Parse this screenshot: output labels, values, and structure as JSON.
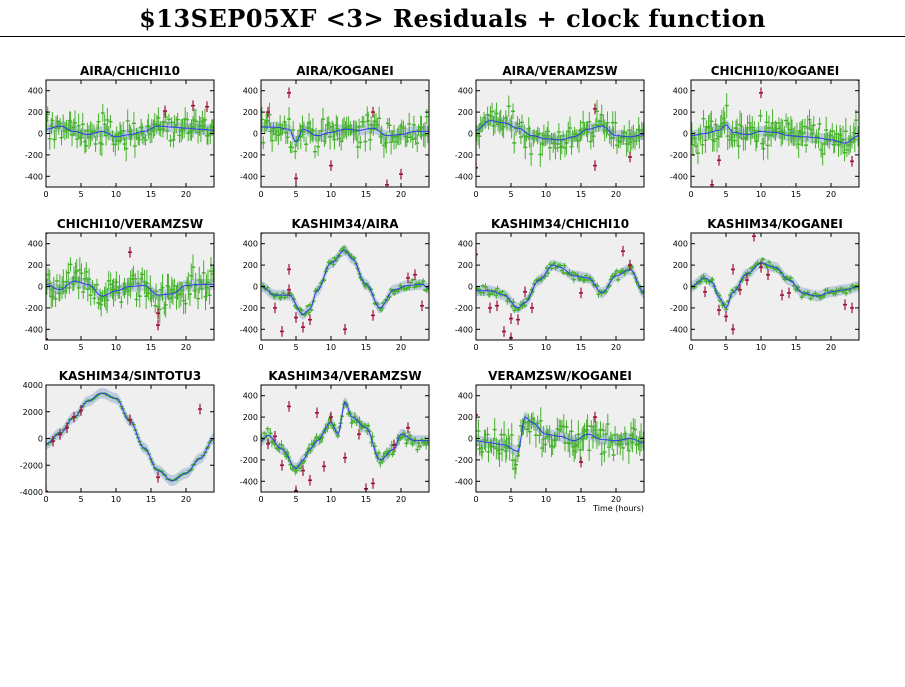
{
  "title": "$13SEP05XF <3> Residuals + clock function",
  "colors": {
    "residual": "#44b12a",
    "outlier": "#a0123a",
    "clock": "#2f3de8",
    "band": "#b9c7dd",
    "panel_bg": "#efefef"
  },
  "chart_data": [
    {
      "type": "scatter",
      "title": "AIRA/CHICHI10",
      "xlim": [
        0,
        24
      ],
      "ylim": [
        -500,
        500
      ],
      "xticks": [
        0,
        5,
        10,
        15,
        20
      ],
      "yticks": [
        -400,
        -200,
        0,
        200,
        400
      ],
      "xlabel": "",
      "clock": [
        [
          0,
          40
        ],
        [
          2,
          70
        ],
        [
          4,
          20
        ],
        [
          6,
          -10
        ],
        [
          8,
          20
        ],
        [
          10,
          -30
        ],
        [
          12,
          -10
        ],
        [
          14,
          20
        ],
        [
          16,
          70
        ],
        [
          18,
          60
        ],
        [
          20,
          50
        ],
        [
          22,
          40
        ],
        [
          24,
          30
        ]
      ],
      "noise": 100,
      "outliers": [
        [
          17,
          210
        ],
        [
          21,
          260
        ],
        [
          23,
          250
        ]
      ]
    },
    {
      "type": "scatter",
      "title": "AIRA/KOGANEI",
      "xlim": [
        0,
        24
      ],
      "ylim": [
        -500,
        500
      ],
      "xticks": [
        0,
        5,
        10,
        15,
        20
      ],
      "yticks": [
        -400,
        -200,
        0,
        200,
        400
      ],
      "xlabel": "",
      "clock": [
        [
          0,
          60
        ],
        [
          2,
          60
        ],
        [
          4,
          40
        ],
        [
          5,
          -80
        ],
        [
          6,
          40
        ],
        [
          8,
          -20
        ],
        [
          10,
          10
        ],
        [
          12,
          40
        ],
        [
          14,
          30
        ],
        [
          16,
          50
        ],
        [
          18,
          -20
        ],
        [
          20,
          -10
        ],
        [
          22,
          20
        ],
        [
          24,
          20
        ]
      ],
      "noise": 100,
      "outliers": [
        [
          1,
          200
        ],
        [
          4,
          380
        ],
        [
          5,
          -420
        ],
        [
          10,
          -300
        ],
        [
          16,
          200
        ],
        [
          18,
          -480
        ],
        [
          20,
          -380
        ]
      ]
    },
    {
      "type": "scatter",
      "title": "AIRA/VERAMZSW",
      "xlim": [
        0,
        24
      ],
      "ylim": [
        -500,
        500
      ],
      "xticks": [
        0,
        5,
        10,
        15,
        20
      ],
      "yticks": [
        -400,
        -200,
        0,
        200,
        400
      ],
      "xlabel": "",
      "clock": [
        [
          0,
          30
        ],
        [
          2,
          120
        ],
        [
          4,
          100
        ],
        [
          6,
          50
        ],
        [
          8,
          -20
        ],
        [
          10,
          -50
        ],
        [
          12,
          -60
        ],
        [
          14,
          -30
        ],
        [
          16,
          40
        ],
        [
          18,
          70
        ],
        [
          20,
          -20
        ],
        [
          22,
          -30
        ],
        [
          24,
          -10
        ]
      ],
      "noise": 100,
      "outliers": [
        [
          0,
          -320
        ],
        [
          17,
          -300
        ],
        [
          22,
          -220
        ],
        [
          17,
          230
        ]
      ]
    },
    {
      "type": "scatter",
      "title": "CHICHI10/KOGANEI",
      "xlim": [
        0,
        24
      ],
      "ylim": [
        -500,
        500
      ],
      "xticks": [
        0,
        5,
        10,
        15,
        20
      ],
      "yticks": [
        -400,
        -200,
        0,
        200,
        400
      ],
      "xlabel": "",
      "clock": [
        [
          0,
          -20
        ],
        [
          2,
          0
        ],
        [
          4,
          30
        ],
        [
          5,
          80
        ],
        [
          6,
          10
        ],
        [
          8,
          -10
        ],
        [
          10,
          20
        ],
        [
          12,
          10
        ],
        [
          14,
          -20
        ],
        [
          16,
          -30
        ],
        [
          18,
          -40
        ],
        [
          20,
          -60
        ],
        [
          22,
          -90
        ],
        [
          24,
          -20
        ]
      ],
      "noise": 110,
      "outliers": [
        [
          3,
          -480
        ],
        [
          4,
          -250
        ],
        [
          10,
          380
        ],
        [
          23,
          -260
        ],
        [
          24,
          500
        ]
      ]
    },
    {
      "type": "scatter",
      "title": "CHICHI10/VERAMZSW",
      "xlim": [
        0,
        24
      ],
      "ylim": [
        -500,
        500
      ],
      "xticks": [
        0,
        5,
        10,
        15,
        20
      ],
      "yticks": [
        -400,
        -200,
        0,
        200,
        400
      ],
      "xlabel": "",
      "clock": [
        [
          0,
          20
        ],
        [
          2,
          -30
        ],
        [
          4,
          50
        ],
        [
          6,
          20
        ],
        [
          8,
          -90
        ],
        [
          10,
          -40
        ],
        [
          12,
          0
        ],
        [
          14,
          10
        ],
        [
          16,
          -80
        ],
        [
          18,
          -70
        ],
        [
          20,
          10
        ],
        [
          22,
          20
        ],
        [
          24,
          20
        ]
      ],
      "noise": 110,
      "outliers": [
        [
          0,
          500
        ],
        [
          0,
          -490
        ],
        [
          12,
          320
        ],
        [
          16,
          -360
        ],
        [
          16,
          -250
        ]
      ]
    },
    {
      "type": "scatter",
      "title": "KASHIM34/AIRA",
      "xlim": [
        0,
        24
      ],
      "ylim": [
        -500,
        500
      ],
      "xticks": [
        0,
        5,
        10,
        15,
        20
      ],
      "yticks": [
        -400,
        -200,
        0,
        200,
        400
      ],
      "xlabel": "",
      "clock": [
        [
          0,
          0
        ],
        [
          2,
          -80
        ],
        [
          4,
          -80
        ],
        [
          6,
          -260
        ],
        [
          7,
          -210
        ],
        [
          8,
          -40
        ],
        [
          10,
          220
        ],
        [
          12,
          340
        ],
        [
          13,
          260
        ],
        [
          15,
          20
        ],
        [
          17,
          -200
        ],
        [
          19,
          -30
        ],
        [
          21,
          10
        ],
        [
          23,
          20
        ],
        [
          24,
          -20
        ]
      ],
      "noise": 25,
      "outliers": [
        [
          0,
          500
        ],
        [
          2,
          -200
        ],
        [
          3,
          -420
        ],
        [
          4,
          -30
        ],
        [
          4,
          160
        ],
        [
          5,
          -290
        ],
        [
          6,
          -380
        ],
        [
          7,
          -310
        ],
        [
          12,
          -400
        ],
        [
          16,
          -270
        ],
        [
          21,
          80
        ],
        [
          22,
          110
        ],
        [
          23,
          -180
        ]
      ]
    },
    {
      "type": "scatter",
      "title": "KASHIM34/CHICHI10",
      "xlim": [
        0,
        24
      ],
      "ylim": [
        -500,
        500
      ],
      "xticks": [
        0,
        5,
        10,
        15,
        20
      ],
      "yticks": [
        -400,
        -200,
        0,
        200,
        400
      ],
      "xlabel": "",
      "clock": [
        [
          0,
          -40
        ],
        [
          2,
          -40
        ],
        [
          4,
          -80
        ],
        [
          6,
          -200
        ],
        [
          7,
          -150
        ],
        [
          9,
          60
        ],
        [
          11,
          200
        ],
        [
          12,
          180
        ],
        [
          14,
          100
        ],
        [
          16,
          80
        ],
        [
          18,
          -60
        ],
        [
          20,
          100
        ],
        [
          22,
          160
        ],
        [
          24,
          -60
        ]
      ],
      "noise": 30,
      "outliers": [
        [
          0,
          300
        ],
        [
          2,
          -200
        ],
        [
          3,
          -180
        ],
        [
          4,
          -420
        ],
        [
          5,
          -300
        ],
        [
          5,
          -480
        ],
        [
          6,
          -310
        ],
        [
          7,
          -50
        ],
        [
          8,
          -200
        ],
        [
          15,
          -60
        ],
        [
          21,
          330
        ],
        [
          22,
          200
        ]
      ]
    },
    {
      "type": "scatter",
      "title": "KASHIM34/KOGANEI",
      "xlim": [
        0,
        24
      ],
      "ylim": [
        -500,
        500
      ],
      "xticks": [
        0,
        5,
        10,
        15,
        20
      ],
      "yticks": [
        -400,
        -200,
        0,
        200,
        400
      ],
      "xlabel": "",
      "clock": [
        [
          0,
          0
        ],
        [
          2,
          80
        ],
        [
          3,
          40
        ],
        [
          4,
          -100
        ],
        [
          5,
          -200
        ],
        [
          6,
          -50
        ],
        [
          8,
          120
        ],
        [
          10,
          220
        ],
        [
          12,
          180
        ],
        [
          14,
          60
        ],
        [
          16,
          -60
        ],
        [
          18,
          -90
        ],
        [
          20,
          -50
        ],
        [
          22,
          -30
        ],
        [
          24,
          0
        ]
      ],
      "noise": 25,
      "outliers": [
        [
          2,
          -50
        ],
        [
          4,
          -220
        ],
        [
          5,
          -280
        ],
        [
          6,
          -400
        ],
        [
          6,
          160
        ],
        [
          7,
          -30
        ],
        [
          8,
          60
        ],
        [
          9,
          470
        ],
        [
          10,
          180
        ],
        [
          11,
          110
        ],
        [
          13,
          -80
        ],
        [
          14,
          -60
        ],
        [
          22,
          -170
        ],
        [
          23,
          -200
        ]
      ]
    },
    {
      "type": "scatter",
      "title": "KASHIM34/SINTOTU3",
      "xlim": [
        0,
        24
      ],
      "ylim": [
        -4000,
        4000
      ],
      "xticks": [
        0,
        5,
        10,
        15,
        20
      ],
      "yticks": [
        -4000,
        -2000,
        0,
        2000,
        4000
      ],
      "xlabel": "",
      "clock": [
        [
          0,
          -400
        ],
        [
          2,
          400
        ],
        [
          4,
          1600
        ],
        [
          6,
          2800
        ],
        [
          8,
          3400
        ],
        [
          10,
          3000
        ],
        [
          12,
          1300
        ],
        [
          14,
          -700
        ],
        [
          16,
          -2400
        ],
        [
          18,
          -3150
        ],
        [
          20,
          -2600
        ],
        [
          22,
          -1500
        ],
        [
          24,
          0
        ]
      ],
      "noise": 60,
      "outliers": [
        [
          0,
          -3950
        ],
        [
          1,
          -200
        ],
        [
          2,
          300
        ],
        [
          3,
          800
        ],
        [
          4,
          1600
        ],
        [
          5,
          2100
        ],
        [
          12,
          1400
        ],
        [
          16,
          -2900
        ],
        [
          22,
          2200
        ]
      ]
    },
    {
      "type": "scatter",
      "title": "KASHIM34/VERAMZSW",
      "xlim": [
        0,
        24
      ],
      "ylim": [
        -500,
        500
      ],
      "xticks": [
        0,
        5,
        10,
        15,
        20
      ],
      "yticks": [
        -400,
        -200,
        0,
        200,
        400
      ],
      "xlabel": "",
      "clock": [
        [
          0,
          -20
        ],
        [
          1,
          30
        ],
        [
          3,
          -100
        ],
        [
          5,
          -280
        ],
        [
          6,
          -200
        ],
        [
          7,
          -100
        ],
        [
          8,
          -20
        ],
        [
          10,
          150
        ],
        [
          11,
          40
        ],
        [
          12,
          340
        ],
        [
          13,
          200
        ],
        [
          15,
          100
        ],
        [
          17,
          -200
        ],
        [
          19,
          -100
        ],
        [
          20,
          40
        ],
        [
          22,
          -20
        ],
        [
          24,
          -20
        ]
      ],
      "noise": 40,
      "outliers": [
        [
          1,
          -50
        ],
        [
          2,
          20
        ],
        [
          3,
          -250
        ],
        [
          4,
          300
        ],
        [
          5,
          -490
        ],
        [
          6,
          -300
        ],
        [
          7,
          -390
        ],
        [
          8,
          240
        ],
        [
          9,
          -260
        ],
        [
          10,
          200
        ],
        [
          12,
          -180
        ],
        [
          14,
          40
        ],
        [
          15,
          -470
        ],
        [
          16,
          -420
        ],
        [
          19,
          -60
        ],
        [
          21,
          100
        ]
      ]
    },
    {
      "type": "scatter",
      "title": "VERAMZSW/KOGANEI",
      "xlim": [
        0,
        24
      ],
      "ylim": [
        -500,
        500
      ],
      "xticks": [
        0,
        5,
        10,
        15,
        20
      ],
      "yticks": [
        -400,
        -200,
        0,
        200,
        400
      ],
      "xlabel": "Time (hours)",
      "clock": [
        [
          0,
          -20
        ],
        [
          2,
          -40
        ],
        [
          4,
          -60
        ],
        [
          6,
          -120
        ],
        [
          7,
          200
        ],
        [
          8,
          150
        ],
        [
          10,
          40
        ],
        [
          12,
          20
        ],
        [
          14,
          -20
        ],
        [
          16,
          40
        ],
        [
          18,
          -10
        ],
        [
          20,
          -20
        ],
        [
          22,
          0
        ],
        [
          24,
          -40
        ]
      ],
      "noise": 110,
      "outliers": [
        [
          0,
          220
        ],
        [
          17,
          200
        ],
        [
          15,
          -220
        ]
      ]
    }
  ]
}
